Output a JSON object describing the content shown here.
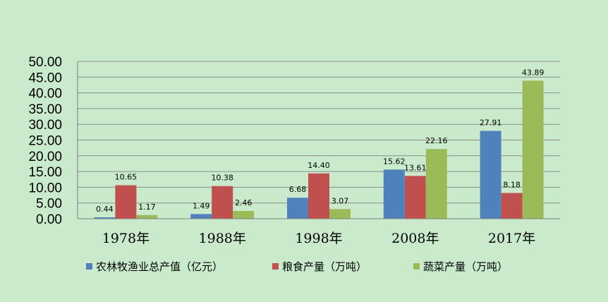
{
  "chart_data": {
    "type": "bar",
    "categories": [
      "1978年",
      "1988年",
      "1998年",
      "2008年",
      "2017年"
    ],
    "series": [
      {
        "name": "农林牧渔业总产值（亿元）",
        "color": "#4f81bd",
        "values": [
          0.44,
          1.49,
          6.68,
          15.62,
          27.91
        ]
      },
      {
        "name": "粮食产量（万吨）",
        "color": "#c0504d",
        "values": [
          10.65,
          10.38,
          14.4,
          13.61,
          8.18
        ]
      },
      {
        "name": "蔬菜产量（万吨）",
        "color": "#9bbb59",
        "values": [
          1.17,
          2.46,
          3.07,
          22.16,
          43.89
        ]
      }
    ],
    "data_labels": [
      [
        "0.44",
        "1.49",
        "6.68",
        "15.62",
        "27.91"
      ],
      [
        "10.65",
        "10.38",
        "14.40",
        "13.61",
        "8.18"
      ],
      [
        "1.17",
        "2.46",
        "3.07",
        "22.16",
        "43.89"
      ]
    ],
    "y_ticks": [
      "0.00",
      "5.00",
      "10.00",
      "15.00",
      "20.00",
      "25.00",
      "30.00",
      "35.00",
      "40.00",
      "45.00",
      "50.00"
    ],
    "ylim": [
      0,
      50
    ],
    "grid": true,
    "legend_position": "bottom",
    "title": "",
    "xlabel": "",
    "ylabel": ""
  }
}
